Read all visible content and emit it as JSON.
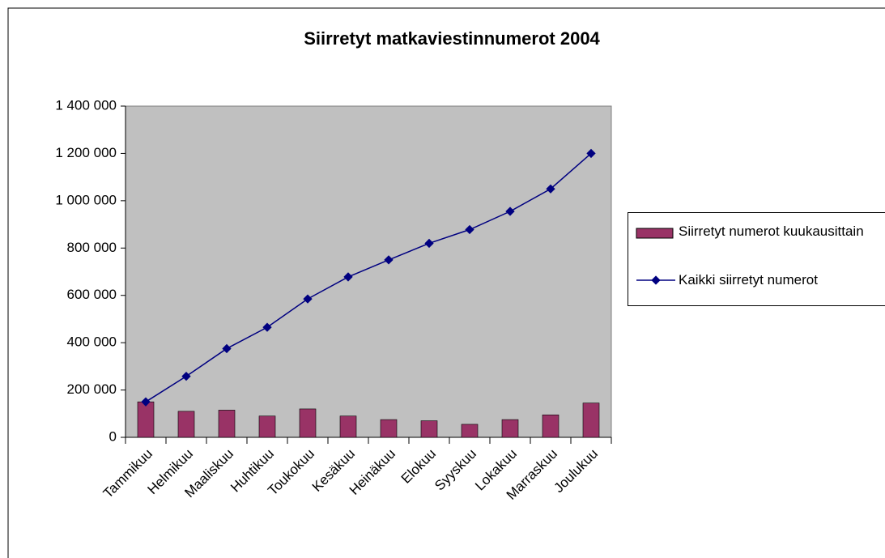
{
  "chart_data": {
    "type": "bar_line",
    "title": "Siirretyt matkaviestinnumerot 2004",
    "categories": [
      "Tammikuu",
      "Helmikuu",
      "Maaliskuu",
      "Huhtikuu",
      "Toukokuu",
      "Kesäkuu",
      "Heinäkuu",
      "Elokuu",
      "Syyskuu",
      "Lokakuu",
      "Marraskuu",
      "Joulukuu"
    ],
    "series": [
      {
        "name": "Siirretyt numerot kuukausittain",
        "type": "bar",
        "color": "#993366",
        "values": [
          150000,
          110000,
          115000,
          90000,
          120000,
          90000,
          75000,
          70000,
          55000,
          75000,
          95000,
          145000
        ]
      },
      {
        "name": "Kaikki siirretyt numerot",
        "type": "line",
        "color": "#000080",
        "values": [
          150000,
          258000,
          375000,
          465000,
          585000,
          678000,
          750000,
          820000,
          878000,
          955000,
          1050000,
          1200000
        ]
      }
    ],
    "ylim": [
      0,
      1400000
    ],
    "yticks": [
      0,
      {
        "value": 200000,
        "label": "200 000"
      },
      {
        "value": 400000,
        "label": "400 000"
      },
      {
        "value": 600000,
        "label": "600 000"
      },
      {
        "value": 800000,
        "label": "800 000"
      },
      {
        "value": 1000000,
        "label": "1 000 000"
      },
      {
        "value": 1200000,
        "label": "1 200 000"
      },
      {
        "value": 1400000,
        "label": "1 400 000"
      }
    ],
    "grid": false,
    "legend": "right"
  }
}
